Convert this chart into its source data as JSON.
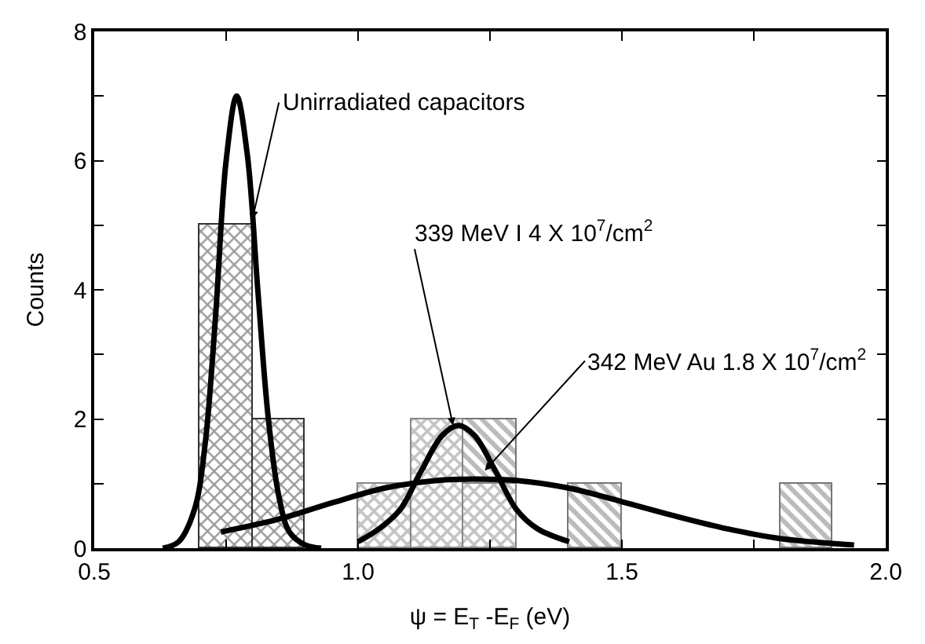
{
  "chart_data": {
    "type": "histogram",
    "xlabel": "ψ = E$_{T}$ -E$_{F}$ (eV)",
    "ylabel": "Counts",
    "xlim": [
      0.5,
      2.0
    ],
    "ylim": [
      0,
      8
    ],
    "xticks": [
      {
        "value": 0.5,
        "label": "0.5"
      },
      {
        "value": 0.75,
        "label": null
      },
      {
        "value": 1.0,
        "label": "1.0"
      },
      {
        "value": 1.25,
        "label": null
      },
      {
        "value": 1.5,
        "label": "1.5"
      },
      {
        "value": 1.75,
        "label": null
      },
      {
        "value": 2.0,
        "label": "2.0"
      }
    ],
    "yticks": [
      0,
      {
        "value": 1,
        "label": null
      },
      2,
      {
        "value": 3,
        "label": null
      },
      4,
      {
        "value": 5,
        "label": null
      },
      6,
      {
        "value": 7,
        "label": null
      },
      8
    ],
    "bins": [
      0.7,
      0.8,
      0.9,
      1.0,
      1.1,
      1.2,
      1.3,
      1.4,
      1.5,
      1.6,
      1.7,
      1.8,
      1.9
    ],
    "series": [
      {
        "color": "#777777",
        "values": [
          null,
          null,
          null,
          null,
          null,
          2,
          null,
          1,
          null,
          null,
          null,
          1
        ]
      },
      {
        "color": "#888888",
        "values": [
          null,
          null,
          null,
          1,
          2,
          1,
          null,
          null,
          null,
          null,
          null,
          null
        ]
      },
      {
        "color": "#333333",
        "values": [
          5,
          2,
          null,
          null,
          null,
          null,
          null,
          null,
          null,
          null,
          null,
          null
        ]
      },
      {
        "type": "line",
        "color": "#000000",
        "x": [
          0.63,
          0.66,
          0.69,
          0.71,
          0.73,
          0.75,
          0.77,
          0.79,
          0.81,
          0.83,
          0.85,
          0.87,
          0.9,
          0.93
        ],
        "values": [
          0,
          0.1,
          0.6,
          1.6,
          3.6,
          6.0,
          7.0,
          6.1,
          4.0,
          2.0,
          0.8,
          0.25,
          0.05,
          0
        ]
      },
      {
        "type": "line",
        "color": "#000000",
        "x": [
          1.0,
          1.04,
          1.08,
          1.12,
          1.16,
          1.19,
          1.22,
          1.26,
          1.3,
          1.34,
          1.4
        ],
        "values": [
          0.1,
          0.3,
          0.6,
          1.2,
          1.75,
          1.9,
          1.75,
          1.2,
          0.6,
          0.3,
          0.1
        ]
      },
      {
        "type": "line",
        "color": "#000000",
        "x": [
          0.74,
          0.85,
          0.95,
          1.05,
          1.15,
          1.22,
          1.3,
          1.4,
          1.5,
          1.6,
          1.7,
          1.8,
          1.94
        ],
        "values": [
          0.25,
          0.45,
          0.7,
          0.93,
          1.05,
          1.07,
          1.05,
          0.93,
          0.72,
          0.5,
          0.3,
          0.15,
          0.05
        ]
      }
    ],
    "annotations": [
      {
        "text": "Unirradiated capacitors",
        "x": 0.8,
        "y": 5.1
      },
      {
        "text": "339 MeV I 4 X 10$^{7}$/cm$^{2}$",
        "x": 1.18,
        "y": 1.9
      },
      {
        "text": "342 MeV Au 1.8 X 10$^{7}$/cm$^{2}$",
        "x": 1.24,
        "y": 1.2
      }
    ]
  }
}
